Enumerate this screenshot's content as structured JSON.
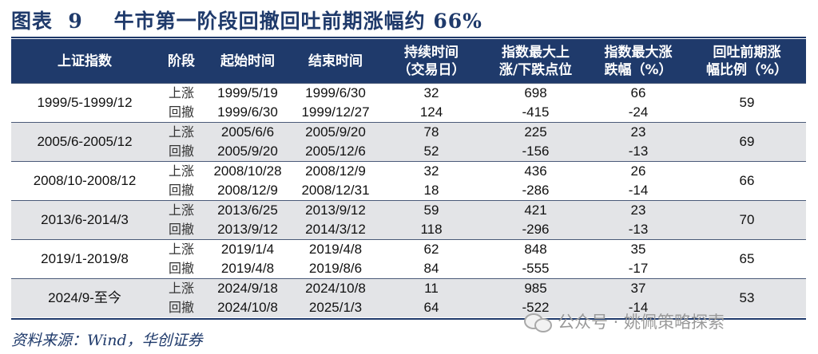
{
  "title": {
    "figure": "图表  9",
    "text": "牛市第一阶段回撤回吐前期涨幅约 66%"
  },
  "table": {
    "headers": [
      [
        "上证指数"
      ],
      [
        "阶段"
      ],
      [
        "起始时间"
      ],
      [
        "结束时间"
      ],
      [
        "持续时间",
        "（交易日）"
      ],
      [
        "指数最大上",
        "涨/下跌点位"
      ],
      [
        "指数最大涨",
        "跌幅（%）"
      ],
      [
        "回吐前期涨",
        "幅比例（%）"
      ]
    ],
    "groups": [
      {
        "period": "1999/5-1999/12",
        "ratio": "59",
        "rows": [
          {
            "stage": "上涨",
            "start": "1999/5/19",
            "end": "1999/6/30",
            "days": "32",
            "points": "698",
            "pct": "66"
          },
          {
            "stage": "回撤",
            "start": "1999/6/30",
            "end": "1999/12/27",
            "days": "124",
            "points": "-415",
            "pct": "-24"
          }
        ]
      },
      {
        "period": "2005/6-2005/12",
        "ratio": "69",
        "rows": [
          {
            "stage": "上涨",
            "start": "2005/6/6",
            "end": "2005/9/20",
            "days": "78",
            "points": "225",
            "pct": "23"
          },
          {
            "stage": "回撤",
            "start": "2005/9/20",
            "end": "2005/12/6",
            "days": "52",
            "points": "-156",
            "pct": "-13"
          }
        ]
      },
      {
        "period": "2008/10-2008/12",
        "ratio": "66",
        "rows": [
          {
            "stage": "上涨",
            "start": "2008/10/28",
            "end": "2008/12/9",
            "days": "32",
            "points": "436",
            "pct": "26"
          },
          {
            "stage": "回撤",
            "start": "2008/12/9",
            "end": "2008/12/31",
            "days": "18",
            "points": "-286",
            "pct": "-14"
          }
        ]
      },
      {
        "period": "2013/6-2014/3",
        "ratio": "70",
        "rows": [
          {
            "stage": "上涨",
            "start": "2013/6/25",
            "end": "2013/9/12",
            "days": "59",
            "points": "421",
            "pct": "23"
          },
          {
            "stage": "回撤",
            "start": "2013/9/12",
            "end": "2014/3/12",
            "days": "118",
            "points": "-296",
            "pct": "-13"
          }
        ]
      },
      {
        "period": "2019/1-2019/8",
        "ratio": "65",
        "rows": [
          {
            "stage": "上涨",
            "start": "2019/1/4",
            "end": "2019/4/8",
            "days": "62",
            "points": "848",
            "pct": "35"
          },
          {
            "stage": "回撤",
            "start": "2019/4/8",
            "end": "2019/8/6",
            "days": "84",
            "points": "-555",
            "pct": "-17"
          }
        ]
      },
      {
        "period": "2024/9-至今",
        "ratio": "53",
        "rows": [
          {
            "stage": "上涨",
            "start": "2024/9/18",
            "end": "2024/10/8",
            "days": "11",
            "points": "985",
            "pct": "37"
          },
          {
            "stage": "回撤",
            "start": "2024/10/8",
            "end": "2025/1/3",
            "days": "64",
            "points": "-522",
            "pct": "-14"
          }
        ]
      }
    ]
  },
  "footer": {
    "source": "资料来源：Wind，华创证券"
  },
  "watermark": {
    "text": "公众号 · 姚佩策略探索",
    "icon": "wechat-icon"
  },
  "colors": {
    "header_bg": "#1f3a6b",
    "alt_row_bg": "#e3e4e7",
    "title_color": "#1f3a6b"
  }
}
